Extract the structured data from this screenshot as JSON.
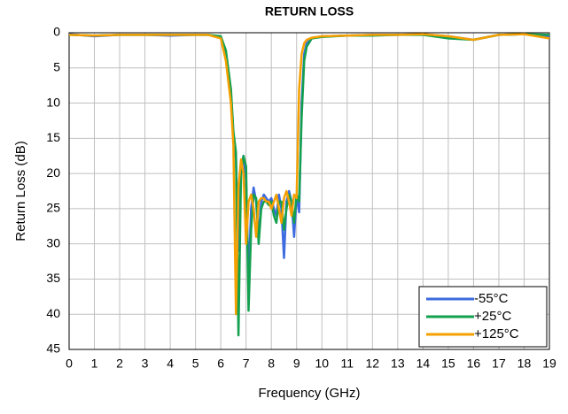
{
  "chart_data": {
    "type": "line",
    "title": "RETURN LOSS",
    "xlabel": "Frequency (GHz)",
    "ylabel": "Return Loss (dB)",
    "x": [
      0,
      1,
      2,
      3,
      4,
      5,
      5.5,
      6,
      6.2,
      6.4,
      6.5,
      6.6,
      6.7,
      6.8,
      6.9,
      7.0,
      7.1,
      7.2,
      7.3,
      7.4,
      7.5,
      7.6,
      7.7,
      7.8,
      7.9,
      8.0,
      8.1,
      8.2,
      8.3,
      8.4,
      8.5,
      8.6,
      8.7,
      8.8,
      8.9,
      9.0,
      9.1,
      9.2,
      9.3,
      9.4,
      9.6,
      10,
      11,
      12,
      13,
      14,
      15,
      16,
      17,
      18,
      19
    ],
    "series": [
      {
        "name": "-55°C",
        "color": "#3d6be0",
        "values": [
          0.2,
          0.5,
          0.3,
          0.3,
          0.4,
          0.3,
          0.3,
          0.6,
          3,
          9,
          15,
          18,
          31,
          19,
          17.5,
          21,
          35,
          25,
          22,
          24,
          29,
          24,
          23,
          23.5,
          24,
          23.5,
          25,
          26,
          23,
          25,
          32,
          24,
          22.5,
          24,
          29,
          23,
          25.5,
          10,
          3,
          1.5,
          0.8,
          0.5,
          0.4,
          0.3,
          0.3,
          0.2,
          0.5,
          1,
          0.3,
          0.2,
          0.5
        ]
      },
      {
        "name": "+25°C",
        "color": "#13a04f",
        "values": [
          0.3,
          0.4,
          0.3,
          0.3,
          0.3,
          0.3,
          0.3,
          0.5,
          2.5,
          8,
          14,
          17,
          43,
          20,
          17.5,
          19,
          39.5,
          28,
          23,
          23.5,
          30,
          25,
          24,
          24,
          24.5,
          24,
          26,
          27,
          24,
          24,
          28,
          25,
          23,
          24,
          27,
          23,
          24,
          12,
          4,
          2,
          0.8,
          0.6,
          0.4,
          0.4,
          0.3,
          0.3,
          0.8,
          1,
          0.3,
          0.2,
          0.3
        ]
      },
      {
        "name": "+125°C",
        "color": "#f5a000",
        "values": [
          0.3,
          0.4,
          0.3,
          0.3,
          0.3,
          0.3,
          0.3,
          0.8,
          4,
          10,
          16,
          40,
          22,
          18,
          20,
          30,
          24,
          23,
          25,
          29,
          24,
          23.5,
          23.5,
          24,
          24,
          25,
          24,
          23,
          25,
          27,
          23.5,
          22.5,
          24,
          26,
          23,
          23.5,
          8,
          3,
          1.5,
          1,
          0.7,
          0.5,
          0.4,
          0.3,
          0.3,
          0.2,
          0.5,
          1,
          0.3,
          0.2,
          0.8
        ]
      }
    ],
    "xlim": [
      0,
      19
    ],
    "xticks": [
      0,
      1,
      2,
      3,
      4,
      5,
      6,
      7,
      8,
      9,
      10,
      11,
      12,
      13,
      14,
      15,
      16,
      17,
      18,
      19
    ],
    "ylim": [
      45,
      0
    ],
    "yticks": [
      0,
      5,
      10,
      15,
      20,
      25,
      30,
      35,
      40,
      45
    ],
    "grid": true,
    "legend": "lower right"
  }
}
